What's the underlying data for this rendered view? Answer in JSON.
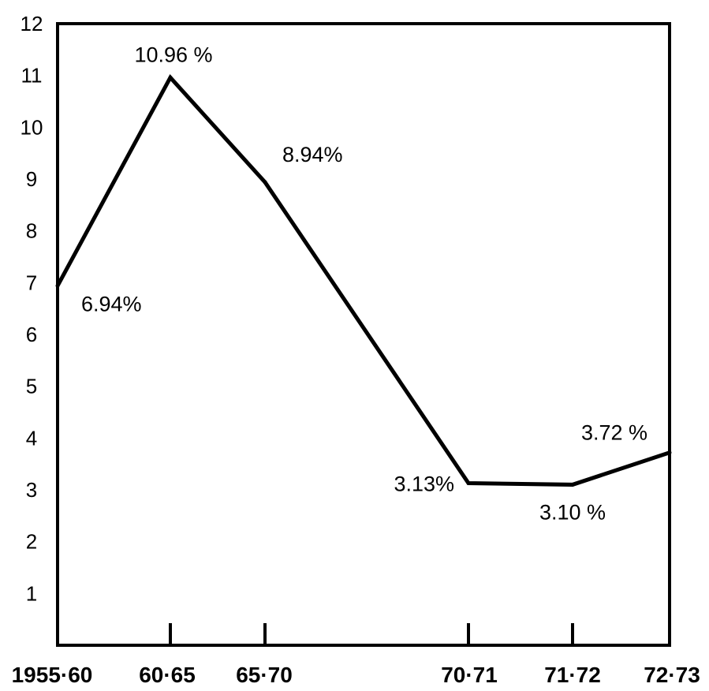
{
  "chart_data": {
    "type": "line",
    "title": "",
    "xlabel": "",
    "ylabel": "",
    "categories": [
      "1955-60",
      "60-65",
      "65-70",
      "70-71",
      "71-72",
      "72-73"
    ],
    "x_tick_labels": [
      "1955·60",
      "60·65",
      "65·70",
      "70·71",
      "71·72",
      "72·73"
    ],
    "series": [
      {
        "values": [
          6.94,
          10.96,
          8.94,
          3.13,
          3.1,
          3.72
        ],
        "data_labels": [
          "6.94%",
          "10.96 %",
          "8.94%",
          "3.13%",
          "3.10 %",
          "3.72 %"
        ]
      }
    ],
    "ylim": [
      0,
      12
    ],
    "y_ticks": [
      1,
      2,
      3,
      4,
      5,
      6,
      7,
      8,
      9,
      10,
      11,
      12
    ],
    "grid": false,
    "legend": "none",
    "colors": {
      "line": "#000000",
      "axis": "#000000",
      "background": "#ffffff"
    }
  }
}
